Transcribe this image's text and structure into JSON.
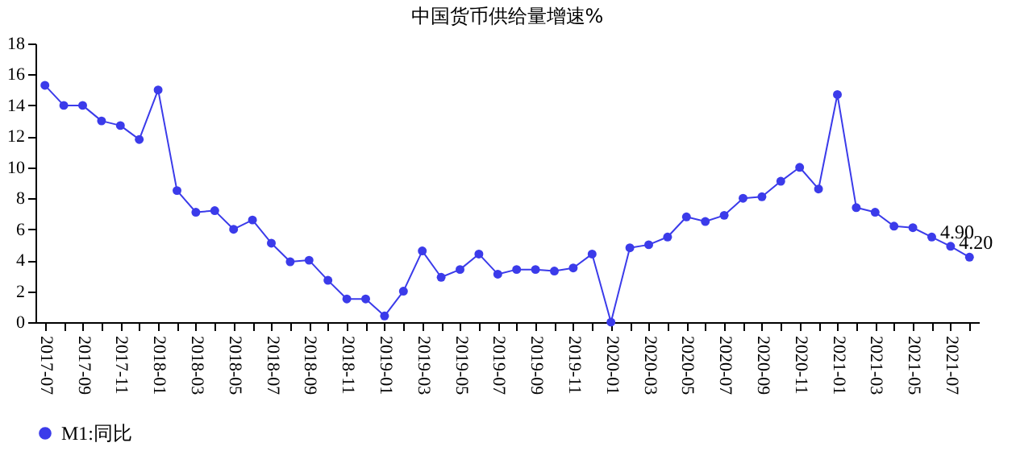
{
  "chart_data": {
    "type": "line",
    "title": "中国货币供给量增速%",
    "categories": [
      "2017-07",
      null,
      "2017-09",
      null,
      "2017-11",
      null,
      "2018-01",
      null,
      "2018-03",
      null,
      "2018-05",
      null,
      "2018-07",
      null,
      "2018-09",
      null,
      "2018-11",
      null,
      "2019-01",
      null,
      "2019-03",
      null,
      "2019-05",
      null,
      "2019-07",
      null,
      "2019-09",
      null,
      "2019-11",
      null,
      "2020-01",
      null,
      "2020-03",
      null,
      "2020-05",
      null,
      "2020-07",
      null,
      "2020-09",
      null,
      "2020-11",
      null,
      "2021-01",
      null,
      "2021-03",
      null,
      "2021-05",
      null,
      "2021-07",
      null
    ],
    "series": [
      {
        "name": "M1:同比",
        "color": "#3b3bea",
        "values": [
          15.3,
          14.0,
          14.0,
          13.0,
          12.7,
          11.8,
          15.0,
          8.5,
          7.1,
          7.2,
          6.0,
          6.6,
          5.1,
          3.9,
          4.0,
          2.7,
          1.5,
          1.5,
          0.4,
          2.0,
          4.6,
          2.9,
          3.4,
          4.4,
          3.1,
          3.4,
          3.4,
          3.3,
          3.5,
          4.4,
          0.0,
          4.8,
          5.0,
          5.5,
          6.8,
          6.5,
          6.9,
          8.0,
          8.1,
          9.1,
          10.0,
          8.6,
          14.7,
          7.4,
          7.1,
          6.2,
          6.1,
          5.5,
          4.9,
          4.2
        ],
        "value_labels": [
          null,
          null,
          null,
          null,
          null,
          null,
          null,
          null,
          null,
          null,
          null,
          null,
          null,
          null,
          null,
          null,
          null,
          null,
          null,
          null,
          null,
          null,
          null,
          null,
          null,
          null,
          null,
          null,
          null,
          null,
          null,
          null,
          null,
          null,
          null,
          null,
          null,
          null,
          null,
          null,
          null,
          null,
          null,
          null,
          null,
          null,
          null,
          null,
          "4.90",
          "4.20"
        ]
      }
    ],
    "ylim": [
      0,
      18
    ],
    "yticks": [
      0,
      2,
      4,
      6,
      8,
      10,
      12,
      14,
      16,
      18
    ],
    "grid": false,
    "legend": "bottom",
    "marker": "circle",
    "line_style": "solid"
  }
}
